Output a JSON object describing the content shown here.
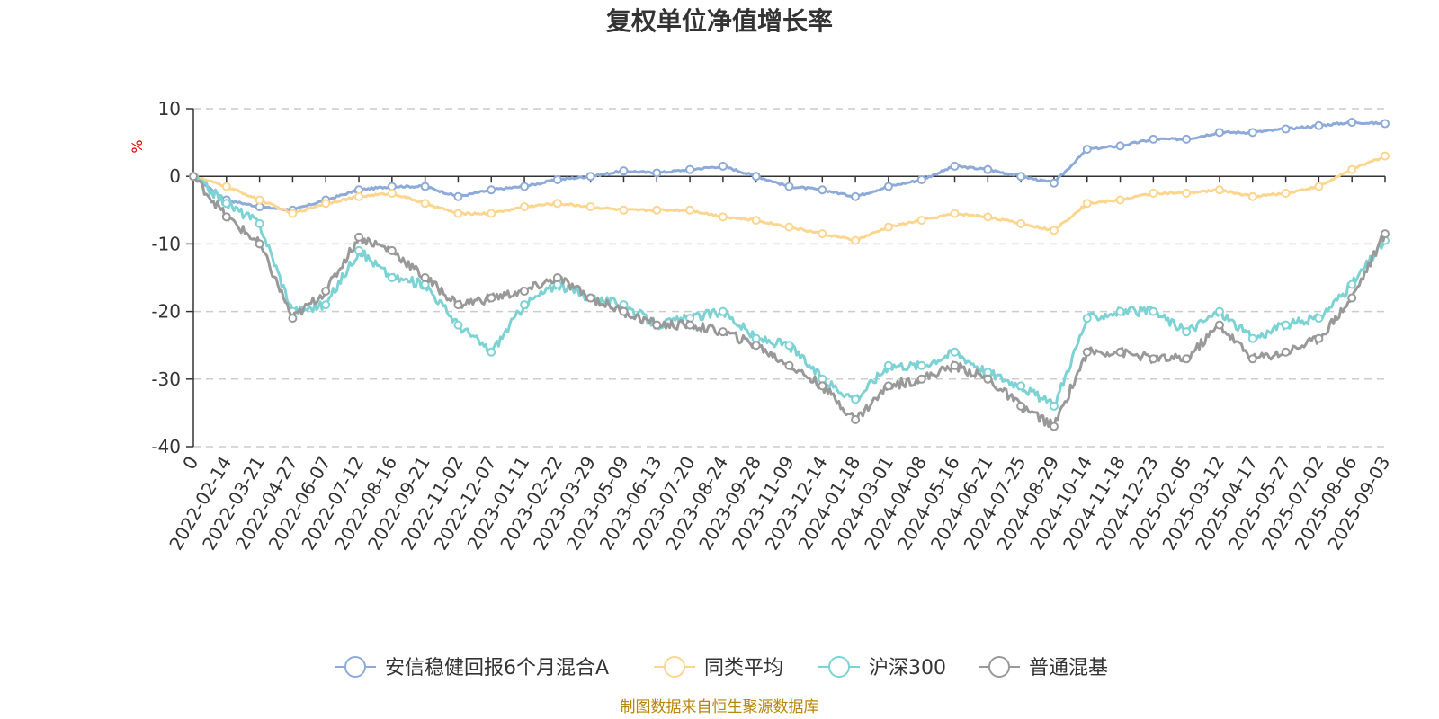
{
  "chart_data": {
    "type": "line",
    "title": "复权单位净值增长率",
    "ylabel": "%",
    "ylim": [
      -40,
      10
    ],
    "yticks": [
      10,
      0,
      -10,
      -20,
      -30,
      -40
    ],
    "grid": true,
    "legend_position": "bottom",
    "source": "制图数据来自恒生聚源数据库",
    "x": [
      "0",
      "2022-02-14",
      "2022-03-21",
      "2022-04-27",
      "2022-06-07",
      "2022-07-12",
      "2022-08-16",
      "2022-09-21",
      "2022-11-02",
      "2022-12-07",
      "2023-01-11",
      "2023-02-22",
      "2023-03-29",
      "2023-05-09",
      "2023-06-13",
      "2023-07-20",
      "2023-08-24",
      "2023-09-28",
      "2023-11-09",
      "2023-12-14",
      "2024-01-18",
      "2024-03-01",
      "2024-04-08",
      "2024-05-16",
      "2024-06-21",
      "2024-07-25",
      "2024-08-29",
      "2024-10-14",
      "2024-11-18",
      "2024-12-23",
      "2025-02-05",
      "2025-03-12",
      "2025-04-17",
      "2025-05-27",
      "2025-07-02",
      "2025-08-06",
      "2025-09-03"
    ],
    "series": [
      {
        "name": "安信稳健回报6个月混合A",
        "color": "#8eaad8",
        "values": [
          0,
          -3.5,
          -4.5,
          -5,
          -3.5,
          -2,
          -1.5,
          -1.5,
          -3,
          -2,
          -1.5,
          -0.5,
          0,
          0.8,
          0.5,
          1,
          1.5,
          0,
          -1.5,
          -2,
          -3,
          -1.5,
          -0.5,
          1.5,
          1,
          0,
          -1,
          4,
          4.5,
          5.5,
          5.5,
          6.5,
          6.5,
          7,
          7.5,
          8,
          7.8
        ]
      },
      {
        "name": "同类平均",
        "color": "#fcd68e",
        "values": [
          0,
          -1.5,
          -3.5,
          -5.5,
          -4,
          -3,
          -2.5,
          -4,
          -5.5,
          -5.5,
          -4.5,
          -4,
          -4.5,
          -5,
          -5,
          -5,
          -6,
          -6.5,
          -7.5,
          -8.5,
          -9.5,
          -7.5,
          -6.5,
          -5.5,
          -6,
          -7,
          -8,
          -4,
          -3.5,
          -2.5,
          -2.5,
          -2,
          -3,
          -2.5,
          -1.5,
          1,
          3
        ]
      },
      {
        "name": "沪深300",
        "color": "#7dd3d3",
        "values": [
          0,
          -4,
          -7,
          -20,
          -19,
          -11,
          -15,
          -16,
          -22,
          -26,
          -19,
          -16,
          -18,
          -19,
          -22,
          -21,
          -20,
          -24,
          -25,
          -30,
          -33,
          -28,
          -28,
          -26,
          -29,
          -31,
          -34,
          -21,
          -20,
          -20,
          -23,
          -20,
          -24,
          -22,
          -21,
          -16,
          -9.5
        ]
      },
      {
        "name": "普通混基",
        "color": "#999999",
        "values": [
          0,
          -6,
          -10,
          -21,
          -17,
          -9,
          -11,
          -15,
          -19,
          -18,
          -17,
          -15,
          -18,
          -20,
          -22,
          -22,
          -23,
          -25,
          -28,
          -31,
          -36,
          -31,
          -30,
          -28,
          -30,
          -34,
          -37,
          -26,
          -26,
          -27,
          -27,
          -22,
          -27,
          -26,
          -24,
          -18,
          -8.5
        ]
      }
    ]
  }
}
